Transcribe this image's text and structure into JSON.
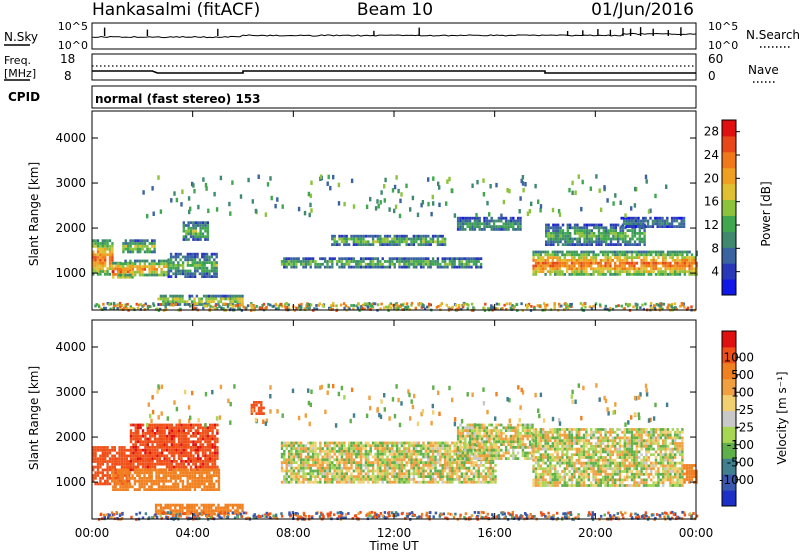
{
  "header": {
    "station": "Hankasalmi (fitACF)",
    "beam": "Beam 10",
    "date": "01/Jun/2016"
  },
  "top_panels": {
    "nsky_label": "N.Sky",
    "nsearch_label": "N.Search",
    "count_ticks": [
      "10^5",
      "10^0"
    ],
    "freq_label": "Freq.",
    "freq_unit": "[MHz]",
    "freq_ticks": [
      "18",
      "8"
    ],
    "nave_label": "Nave",
    "nave_ticks": [
      "60",
      "0"
    ],
    "cpid_label": "CPID",
    "cpid_text": "normal (fast stereo) 153",
    "colors": {
      "trace": "#000000"
    }
  },
  "x_axis": {
    "label": "Time UT",
    "ticks": [
      "00:00",
      "04:00",
      "08:00",
      "12:00",
      "16:00",
      "20:00",
      "00:00"
    ],
    "range_hours": [
      0,
      24
    ]
  },
  "chart_data": [
    {
      "type": "heatmap",
      "name": "power",
      "ylabel": "Slant Range [km]",
      "yticks": [
        "1000",
        "2000",
        "3000",
        "4000"
      ],
      "ylim_km": [
        180,
        4600
      ],
      "colorbar": {
        "label": "Power [dB]",
        "ticks": [
          "4",
          "8",
          "12",
          "16",
          "20",
          "24",
          "28"
        ],
        "range": [
          0,
          30
        ],
        "colors": [
          "#1018e8",
          "#2838b8",
          "#3a64a0",
          "#3f8a6e",
          "#3fa84f",
          "#8cc23c",
          "#e0c030",
          "#f0a020",
          "#f07818",
          "#e84818",
          "#e01010"
        ]
      },
      "echo_regions": [
        {
          "t_start": 0.0,
          "t_end": 0.8,
          "r_low": 950,
          "r_high": 1750,
          "power": 22
        },
        {
          "t_start": 0.8,
          "t_end": 1.6,
          "r_low": 880,
          "r_high": 1250,
          "power": 24
        },
        {
          "t_start": 1.0,
          "t_end": 3.0,
          "r_low": 950,
          "r_high": 1300,
          "power": 20
        },
        {
          "t_start": 1.2,
          "t_end": 2.5,
          "r_low": 1450,
          "r_high": 1750,
          "power": 14
        },
        {
          "t_start": 3.0,
          "t_end": 5.0,
          "r_low": 950,
          "r_high": 1450,
          "power": 12
        },
        {
          "t_start": 3.6,
          "t_end": 4.6,
          "r_low": 1750,
          "r_high": 2150,
          "power": 13
        },
        {
          "t_start": 2.5,
          "t_end": 6.0,
          "r_low": 330,
          "r_high": 520,
          "power": 17
        },
        {
          "t_start": 7.5,
          "t_end": 15.5,
          "r_low": 1150,
          "r_high": 1350,
          "power": 13
        },
        {
          "t_start": 9.5,
          "t_end": 14.0,
          "r_low": 1650,
          "r_high": 1850,
          "power": 14
        },
        {
          "t_start": 14.5,
          "t_end": 17.0,
          "r_low": 1950,
          "r_high": 2250,
          "power": 10
        },
        {
          "t_start": 17.5,
          "t_end": 24.0,
          "r_low": 950,
          "r_high": 1500,
          "power": 22
        },
        {
          "t_start": 18.0,
          "t_end": 22.0,
          "r_low": 1650,
          "r_high": 2100,
          "power": 12
        },
        {
          "t_start": 21.0,
          "t_end": 23.5,
          "r_low": 2050,
          "r_high": 2250,
          "power": 9
        }
      ]
    },
    {
      "type": "heatmap",
      "name": "velocity",
      "ylabel": "Slant Range [km]",
      "yticks": [
        "1000",
        "2000",
        "3000",
        "4000"
      ],
      "ylim_km": [
        180,
        4600
      ],
      "colorbar": {
        "label": "Velocity [m s⁻¹]",
        "ticks": [
          "1000",
          "500",
          "100",
          "25",
          "-25",
          "-100",
          "-500",
          "-1000"
        ],
        "colors": [
          "#1c30c8",
          "#3858b0",
          "#3f7f8e",
          "#5fb04a",
          "#a6d653",
          "#c8c8c8",
          "#f0d070",
          "#f0a040",
          "#f08020",
          "#f05018",
          "#e01010"
        ]
      },
      "echo_regions": [
        {
          "t_start": 0.0,
          "t_end": 1.5,
          "r_low": 950,
          "r_high": 1800,
          "velocity": -300
        },
        {
          "t_start": 1.5,
          "t_end": 5.0,
          "r_low": 1300,
          "r_high": 2300,
          "velocity": -400
        },
        {
          "t_start": 0.8,
          "t_end": 5.0,
          "r_low": 850,
          "r_high": 1300,
          "velocity": -60
        },
        {
          "t_start": 2.5,
          "t_end": 6.0,
          "r_low": 330,
          "r_high": 520,
          "velocity": -60
        },
        {
          "t_start": 6.3,
          "t_end": 6.8,
          "r_low": 2500,
          "r_high": 2800,
          "velocity": -300
        },
        {
          "t_start": 7.5,
          "t_end": 16.0,
          "r_low": 1000,
          "r_high": 1900,
          "velocity": 0
        },
        {
          "t_start": 14.5,
          "t_end": 17.5,
          "r_low": 1500,
          "r_high": 2300,
          "velocity": 0
        },
        {
          "t_start": 17.5,
          "t_end": 23.5,
          "r_low": 900,
          "r_high": 2200,
          "velocity": 0
        },
        {
          "t_start": 23.5,
          "t_end": 24.0,
          "r_low": 1000,
          "r_high": 1400,
          "velocity": -60
        }
      ]
    }
  ]
}
